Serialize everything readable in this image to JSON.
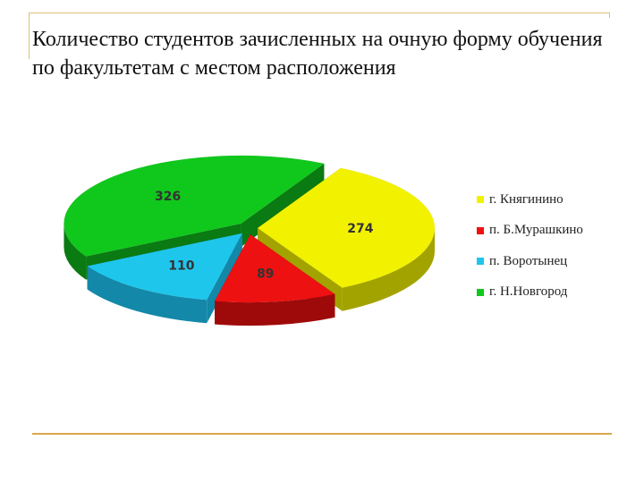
{
  "slide": {
    "title": "Количество студентов зачисленных на очную форму обучения по факультетам с местом расположения"
  },
  "colors": {
    "frame": "#d9c27a",
    "rule": "#d9a84a"
  },
  "chart_data": {
    "type": "pie",
    "style": "3d-exploded",
    "legend_position": "right",
    "categories": [
      "г. Княгинино",
      "п. Б.Мурашкино",
      "п. Воротынец",
      "г. Н.Новгород"
    ],
    "values": [
      274,
      89,
      110,
      326
    ],
    "colors": [
      "#f2f200",
      "#ee1111",
      "#1fc6ec",
      "#10c81c"
    ],
    "side_colors": [
      "#a3a300",
      "#9e0a0a",
      "#1388a8",
      "#0a7a12"
    ]
  }
}
